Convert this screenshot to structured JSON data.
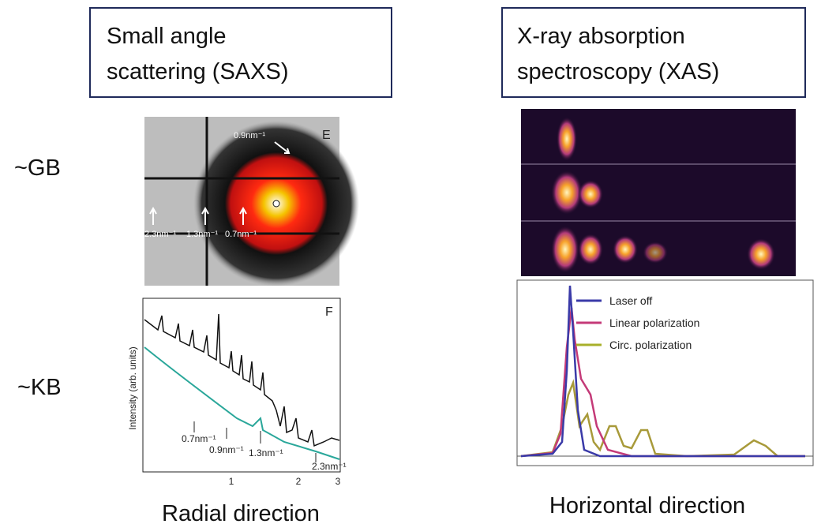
{
  "rows": [
    "~GB",
    "~KB"
  ],
  "saxs": {
    "title": [
      "Small angle",
      "scattering (SAXS)"
    ],
    "image": {
      "label": "E",
      "annotations": [
        "0.9nm⁻¹",
        "2.3nm⁻¹",
        "1.3nm⁻¹",
        "0.7nm⁻¹"
      ]
    },
    "plot": {
      "label": "F",
      "y_label": "Intensity (arb. units)",
      "annotations": [
        "0.7nm⁻¹",
        "0.9nm⁻¹",
        "1.3nm⁻¹",
        "2.3nm⁻¹"
      ],
      "x_ticks": [
        "1",
        "2",
        "3"
      ]
    },
    "caption": "Radial direction"
  },
  "xas": {
    "title": [
      "X-ray absorption",
      "spectroscopy (XAS)"
    ],
    "plot": {
      "legend": [
        "Laser off",
        "Linear polarization",
        "Circ. polarization"
      ]
    },
    "caption": "Horizontal direction"
  }
}
